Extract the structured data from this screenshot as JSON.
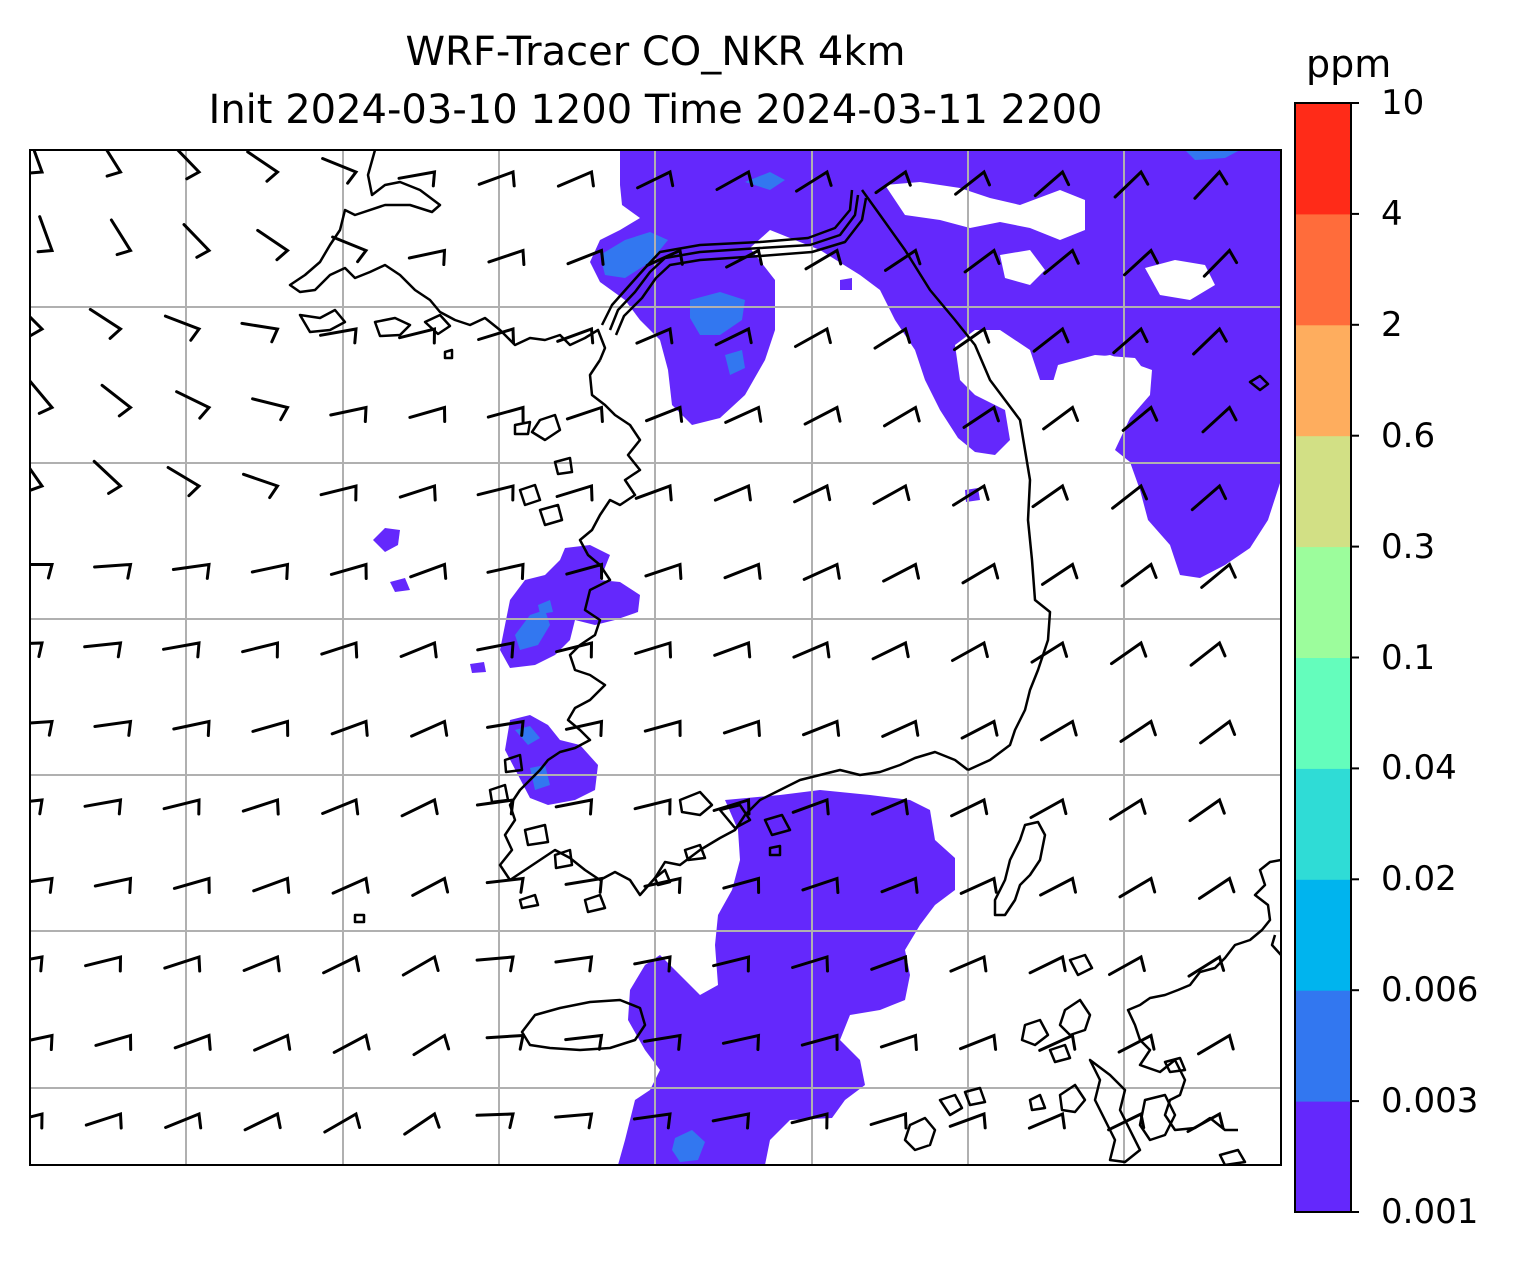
{
  "title": {
    "line1": "WRF-Tracer CO_NKR 4km",
    "line2": "Init 2024-03-10 1200 Time 2024-03-11 2200"
  },
  "colorbar": {
    "unit": "ppm",
    "levels": [
      "0.001",
      "0.003",
      "0.006",
      "0.02",
      "0.04",
      "0.1",
      "0.3",
      "0.6",
      "2",
      "4",
      "10"
    ],
    "colors": [
      "#6428fc",
      "#3277f0",
      "#00b4ee",
      "#2fdcd6",
      "#64fdbc",
      "#9cfd9c",
      "#d2e085",
      "#fead5e",
      "#ff6c3b",
      "#ff2b18"
    ]
  },
  "map": {
    "contour_fill_color": "#6428fc",
    "contour_core_color": "#3277f0",
    "coastline_color": "#000000",
    "gridline_color": "#b0b0b0",
    "wind_barb_color": "#000000",
    "grid_on": true
  }
}
